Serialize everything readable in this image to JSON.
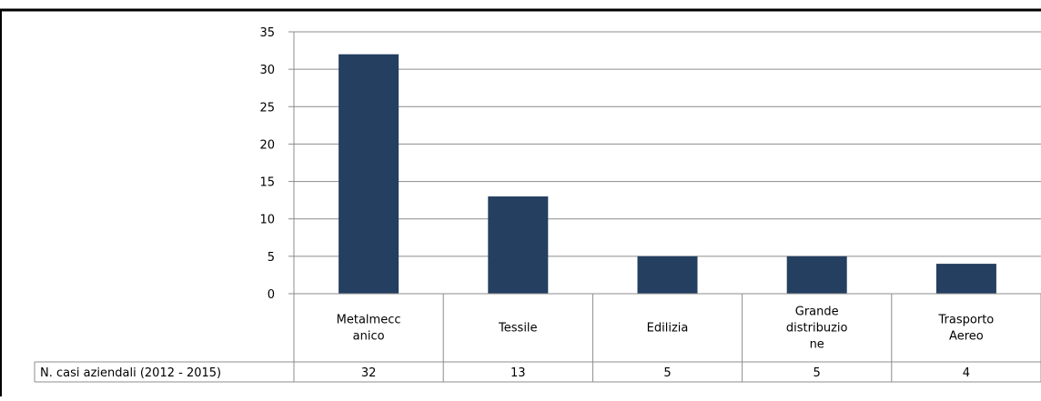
{
  "chart_data": {
    "type": "bar",
    "categories": [
      [
        "Metalmecc",
        "anico"
      ],
      [
        "Tessile"
      ],
      [
        "Edilizia"
      ],
      [
        "Grande",
        "distribuzio",
        "ne"
      ],
      [
        "Trasporto",
        "Aereo"
      ]
    ],
    "values": [
      32,
      13,
      5,
      5,
      4
    ],
    "series_label": "N. casi aziendali (2012 - 2015)",
    "ylim": [
      0,
      35
    ],
    "yticks": [
      0,
      5,
      10,
      15,
      20,
      25,
      30,
      35
    ],
    "grid": true,
    "data_table": true,
    "bar_color": "#243f60",
    "grid_color": "#8c8c8c"
  }
}
